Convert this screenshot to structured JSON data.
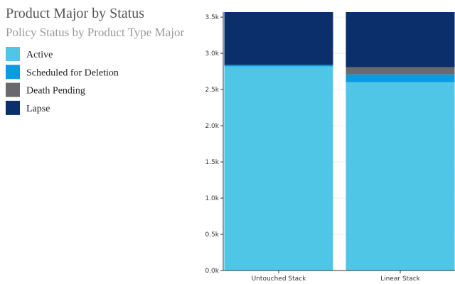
{
  "chart_data": {
    "type": "stacked-bar",
    "title": "Product Major by Status",
    "subtitle": "Policy Status by Product Type Major",
    "categories": [
      "Untouched Stack",
      "Linear Stack"
    ],
    "series": [
      {
        "name": "Active",
        "color": "#50c6e6",
        "values": [
          2820,
          2600
        ]
      },
      {
        "name": "Scheduled for Deletion",
        "color": "#0a9be0",
        "values": [
          20,
          110
        ]
      },
      {
        "name": "Death Pending",
        "color": "#6a6a6e",
        "values": [
          0,
          100
        ]
      },
      {
        "name": "Lapse",
        "color": "#0a2f6b",
        "values": [
          730,
          760
        ]
      }
    ],
    "ylim": [
      0,
      3570
    ],
    "yticks": [
      {
        "value": 0,
        "label": "0.0k"
      },
      {
        "value": 500,
        "label": "0.5k"
      },
      {
        "value": 1000,
        "label": "1.0k"
      },
      {
        "value": 1500,
        "label": "1.5k"
      },
      {
        "value": 2000,
        "label": "2.0k"
      },
      {
        "value": 2500,
        "label": "2.5k"
      },
      {
        "value": 3000,
        "label": "3.0k"
      },
      {
        "value": 3500,
        "label": "3.5k"
      }
    ],
    "grid": true
  }
}
